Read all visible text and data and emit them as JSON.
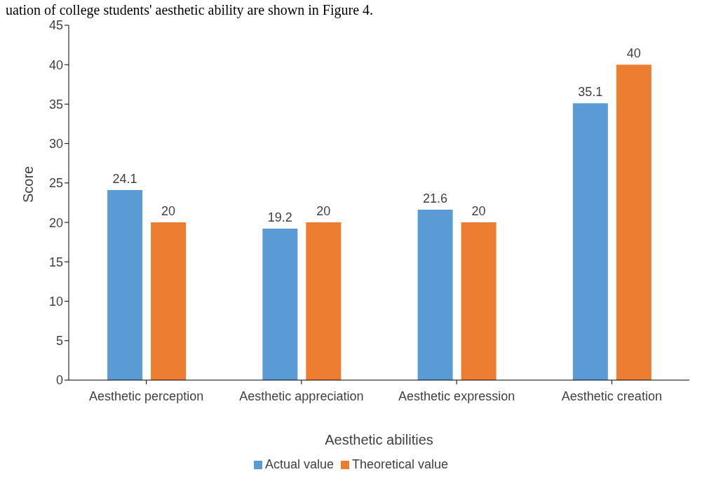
{
  "chart_data": {
    "type": "bar",
    "xlabel": "Aesthetic abilities",
    "ylabel": "Score",
    "annotations": [
      "uation of college students' aesthetic ability are shown in Figure 4."
    ],
    "categories": [
      "Aesthetic perception",
      "Aesthetic appreciation",
      "Aesthetic expression",
      "Aesthetic creation"
    ],
    "series": [
      {
        "name": "Actual value",
        "color": "#5b9bd5",
        "values": [
          24.1,
          19.2,
          21.6,
          35.1
        ]
      },
      {
        "name": "Theoretical value",
        "color": "#ed7d31",
        "values": [
          20,
          20,
          20,
          40
        ]
      }
    ],
    "ylim": [
      0,
      45
    ],
    "yticks": [
      0,
      5,
      10,
      15,
      20,
      25,
      30,
      35,
      40,
      45
    ],
    "grid": false,
    "legend": "bottom",
    "data_labels": true
  }
}
